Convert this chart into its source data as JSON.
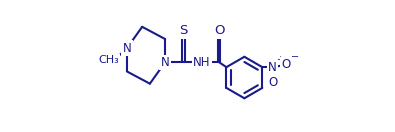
{
  "bg_color": "#ffffff",
  "line_color": "#1a1a8c",
  "line_width": 1.5,
  "font_size": 8.5,
  "figsize": [
    3.95,
    1.32
  ],
  "dpi": 100,
  "xlim": [
    -0.3,
    10.5
  ],
  "ylim": [
    0.0,
    8.5
  ],
  "pip_N1": [
    3.0,
    4.5
  ],
  "pip_C1": [
    3.0,
    6.0
  ],
  "pip_C2": [
    1.5,
    6.8
  ],
  "pip_N2": [
    0.5,
    5.4
  ],
  "pip_C3": [
    0.5,
    3.9
  ],
  "pip_C4": [
    2.0,
    3.1
  ],
  "Cth": [
    4.2,
    4.5
  ],
  "S": [
    4.2,
    6.2
  ],
  "NH": [
    5.35,
    4.5
  ],
  "Cco": [
    6.5,
    4.5
  ],
  "O": [
    6.5,
    6.2
  ],
  "bx": 8.15,
  "by": 3.5,
  "br": 1.35,
  "methyl_x": -0.3,
  "methyl_y": 4.65
}
